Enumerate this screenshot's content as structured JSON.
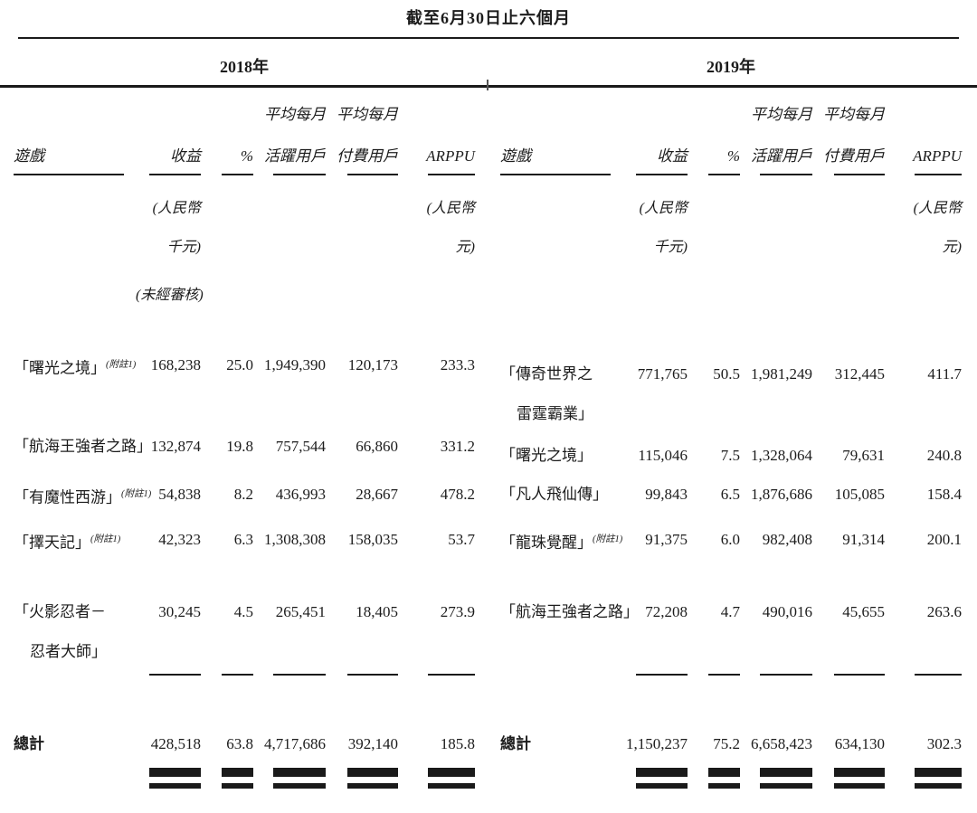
{
  "title": "截至6月30日止六個月",
  "panels": [
    {
      "year": "2018年",
      "headers": {
        "game": "遊戲",
        "revenue": "收益",
        "percent": "%",
        "mau_line1": "平均每月",
        "mau_line2": "活躍用戶",
        "mpu_line1": "平均每月",
        "mpu_line2": "付費用戶",
        "arppu": "ARPPU"
      },
      "units": {
        "revenue_line1": "(人民幣",
        "revenue_line2": "千元)",
        "revenue_line3": "(未經審核)",
        "arppu_line1": "(人民幣",
        "arppu_line2": "元)"
      },
      "rows": [
        {
          "name_lines": [
            "「曙光之境」"
          ],
          "note": "(附註1)",
          "revenue": "168,238",
          "percent": "25.0",
          "mau": "1,949,390",
          "mpu": "120,173",
          "arppu": "233.3"
        },
        {
          "name_lines": [
            "「航海王強者之路」"
          ],
          "note": "",
          "revenue": "132,874",
          "percent": "19.8",
          "mau": "757,544",
          "mpu": "66,860",
          "arppu": "331.2"
        },
        {
          "name_lines": [
            "「有魔性西游」"
          ],
          "note": "(附註1)",
          "revenue": "54,838",
          "percent": "8.2",
          "mau": "436,993",
          "mpu": "28,667",
          "arppu": "478.2"
        },
        {
          "name_lines": [
            "「擇天記」"
          ],
          "note": "(附註1)",
          "revenue": "42,323",
          "percent": "6.3",
          "mau": "1,308,308",
          "mpu": "158,035",
          "arppu": "53.7"
        },
        {
          "name_lines": [
            "「火影忍者－",
            "忍者大師」"
          ],
          "note": "",
          "revenue": "30,245",
          "percent": "4.5",
          "mau": "265,451",
          "mpu": "18,405",
          "arppu": "273.9"
        }
      ],
      "total": {
        "label": "總計",
        "revenue": "428,518",
        "percent": "63.8",
        "mau": "4,717,686",
        "mpu": "392,140",
        "arppu": "185.8"
      }
    },
    {
      "year": "2019年",
      "headers": {
        "game": "遊戲",
        "revenue": "收益",
        "percent": "%",
        "mau_line1": "平均每月",
        "mau_line2": "活躍用戶",
        "mpu_line1": "平均每月",
        "mpu_line2": "付費用戶",
        "arppu": "ARPPU"
      },
      "units": {
        "revenue_line1": "(人民幣",
        "revenue_line2": "千元)",
        "revenue_line3": "",
        "arppu_line1": "(人民幣",
        "arppu_line2": "元)"
      },
      "rows": [
        {
          "name_lines": [
            "「傳奇世界之",
            "雷霆霸業」"
          ],
          "note": "",
          "revenue": "771,765",
          "percent": "50.5",
          "mau": "1,981,249",
          "mpu": "312,445",
          "arppu": "411.7"
        },
        {
          "name_lines": [
            "「曙光之境」"
          ],
          "note": "",
          "revenue": "115,046",
          "percent": "7.5",
          "mau": "1,328,064",
          "mpu": "79,631",
          "arppu": "240.8"
        },
        {
          "name_lines": [
            "「凡人飛仙傳」"
          ],
          "note": "",
          "revenue": "99,843",
          "percent": "6.5",
          "mau": "1,876,686",
          "mpu": "105,085",
          "arppu": "158.4"
        },
        {
          "name_lines": [
            "「龍珠覺醒」"
          ],
          "note": "(附註1)",
          "revenue": "91,375",
          "percent": "6.0",
          "mau": "982,408",
          "mpu": "91,314",
          "arppu": "200.1"
        },
        {
          "name_lines": [
            "「航海王強者之路」"
          ],
          "note": "",
          "revenue": "72,208",
          "percent": "4.7",
          "mau": "490,016",
          "mpu": "45,655",
          "arppu": "263.6"
        }
      ],
      "total": {
        "label": "總計",
        "revenue": "1,150,237",
        "percent": "75.2",
        "mau": "6,658,423",
        "mpu": "634,130",
        "arppu": "302.3"
      }
    }
  ]
}
